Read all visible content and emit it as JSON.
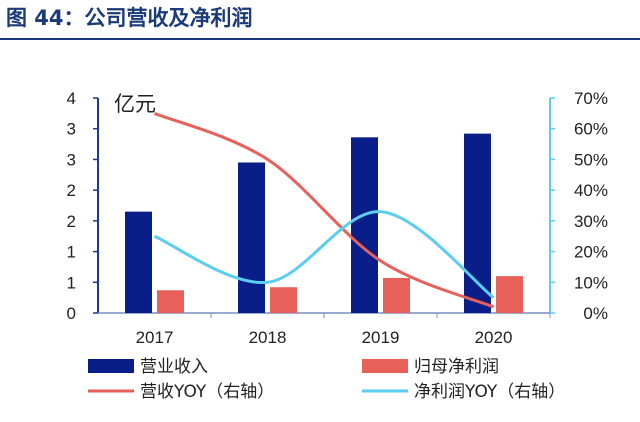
{
  "header": {
    "title": "图 44：公司营收及净利润"
  },
  "chart_data": {
    "type": "bar",
    "categories": [
      "2017",
      "2018",
      "2019",
      "2020"
    ],
    "y_unit_label": "亿元",
    "left_axis": {
      "ticks": [
        "0",
        "1",
        "1",
        "2",
        "2",
        "3",
        "3",
        "4"
      ],
      "min": 0,
      "max": 3.5
    },
    "right_axis": {
      "ticks": [
        "0%",
        "10%",
        "20%",
        "30%",
        "40%",
        "50%",
        "60%",
        "70%"
      ],
      "min": 0,
      "max": 70
    },
    "series": [
      {
        "name": "营业收入",
        "kind": "bar",
        "axis": "left",
        "color": "#0a1e8a",
        "values": [
          1.65,
          2.45,
          2.86,
          2.92
        ]
      },
      {
        "name": "归母净利润",
        "kind": "bar",
        "axis": "left",
        "color": "#e8605a",
        "values": [
          0.37,
          0.42,
          0.57,
          0.6
        ]
      },
      {
        "name": "营收YOY（右轴）",
        "kind": "line",
        "axis": "right",
        "color": "#e8605a",
        "values": [
          65,
          50,
          17,
          2
        ]
      },
      {
        "name": "净利润YOY（右轴）",
        "kind": "line",
        "axis": "right",
        "color": "#5bcdf0",
        "values": [
          25,
          10,
          33,
          5
        ]
      }
    ],
    "left_axis_color": "#1a3a9a",
    "right_axis_color": "#5bcdf0",
    "grid": false,
    "legend_position": "bottom"
  }
}
